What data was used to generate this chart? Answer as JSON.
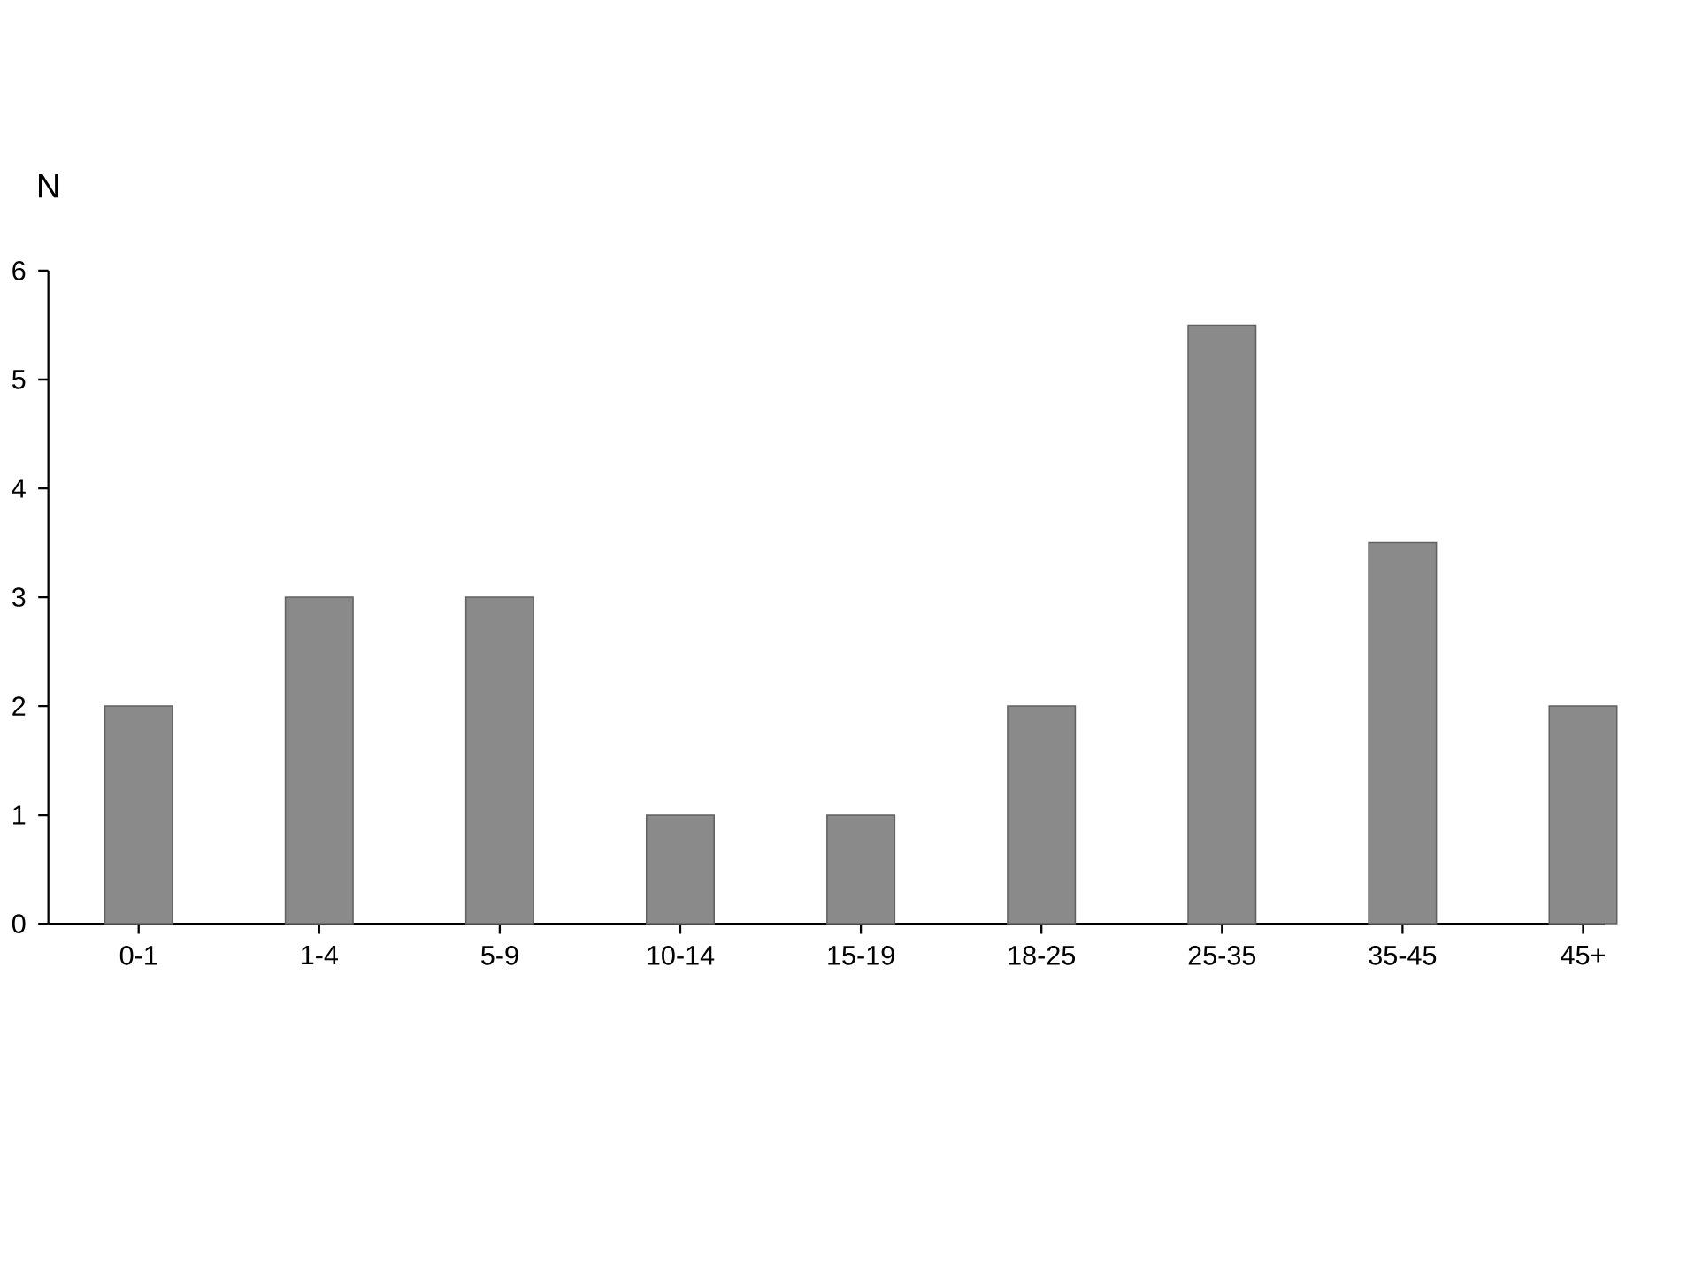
{
  "chart_data": {
    "type": "bar",
    "ylabel": "N",
    "categories": [
      "0-1",
      "1-4",
      "5-9",
      "10-14",
      "15-19",
      "18-25",
      "25-35",
      "35-45",
      "45+"
    ],
    "values": [
      2,
      3,
      3,
      1,
      1,
      2,
      5.5,
      3.5,
      2
    ],
    "color": "#8a8a8a",
    "ylim": [
      0,
      6
    ],
    "yticks": [
      0,
      1,
      2,
      3,
      4,
      5,
      6
    ]
  }
}
